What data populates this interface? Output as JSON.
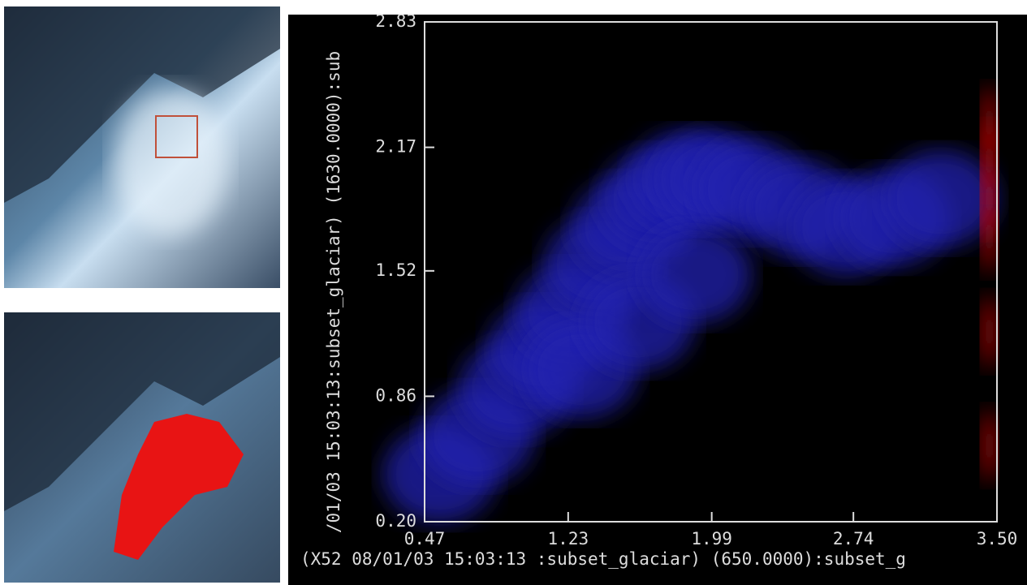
{
  "chart_data": {
    "type": "scatter",
    "x_label": "(X52 08/01/03 15:03:13 :subset_glaciar) (650.0000):subset_g",
    "y_label": "/01/03 15:03:13:subset_glaciar) (1630.0000):sub",
    "xlim": [
      0.47,
      3.5
    ],
    "xticks": [
      0.47,
      1.23,
      1.99,
      2.74,
      {
        "value": 3.5,
        "label": "3.50"
      }
    ],
    "ylim": [
      0.2,
      2.83
    ],
    "yticks": [
      {
        "value": 0.2,
        "label": "0.20"
      },
      0.86,
      1.52,
      2.17,
      2.83
    ],
    "series": [
      {
        "color": "#2424b0",
        "x": [
          0.55,
          0.75,
          0.95,
          1.1,
          1.25,
          1.4,
          1.55,
          1.7,
          1.85,
          2.0,
          2.2,
          2.45,
          2.7,
          2.95,
          3.2,
          1.3,
          1.6,
          1.9
        ],
        "values": [
          0.45,
          0.65,
          0.9,
          1.1,
          1.3,
          1.55,
          1.75,
          1.9,
          2.0,
          2.0,
          1.95,
          1.85,
          1.75,
          1.8,
          1.9,
          1.0,
          1.25,
          1.5
        ]
      },
      {
        "color": "#e01010",
        "x": [
          3.46,
          3.46,
          3.46,
          3.46,
          3.46,
          3.46
        ],
        "values": [
          2.3,
          2.1,
          1.9,
          1.7,
          1.2,
          0.6
        ]
      }
    ]
  }
}
